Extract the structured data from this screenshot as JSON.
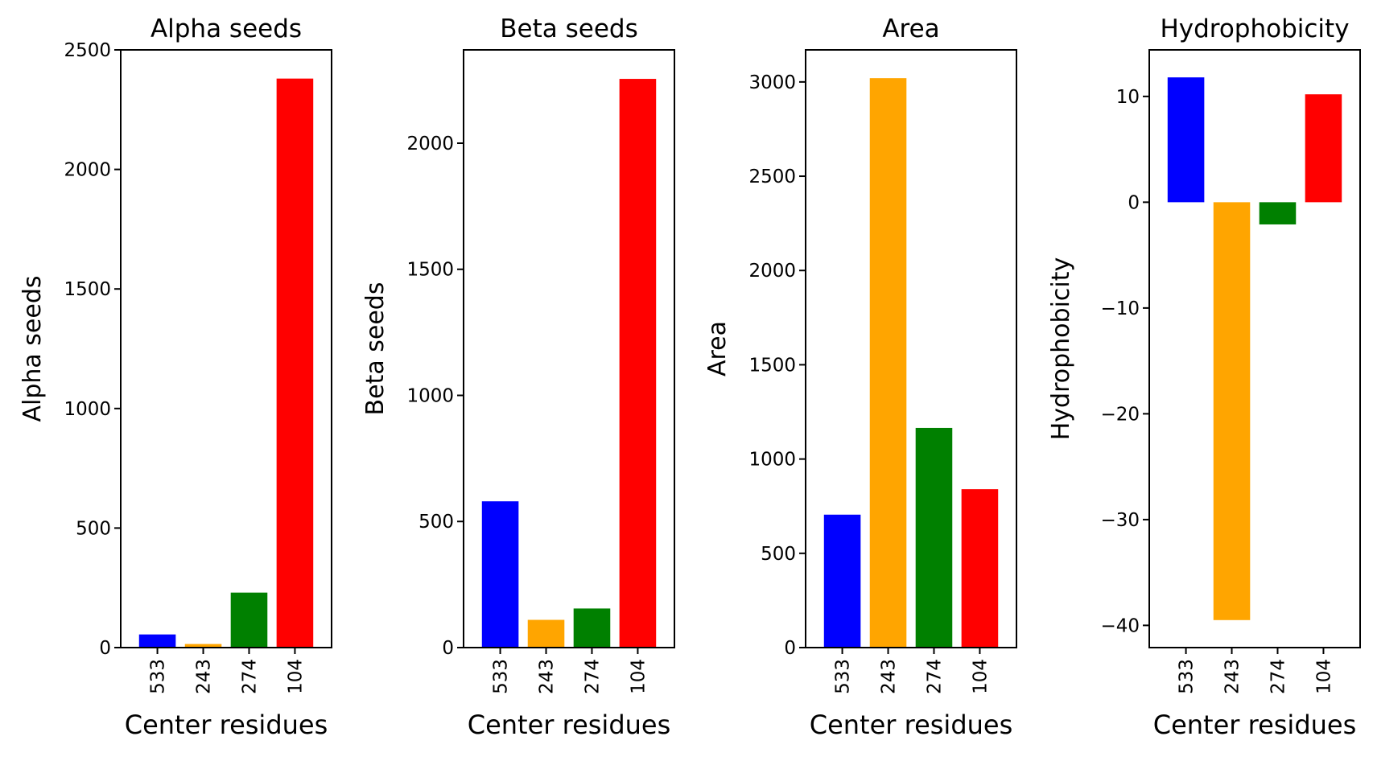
{
  "chart_data": [
    {
      "type": "bar",
      "title": "Alpha seeds",
      "xlabel": "Center residues",
      "ylabel": "Alpha seeds",
      "categories": [
        "533",
        "243",
        "274",
        "104"
      ],
      "values": [
        55,
        15,
        230,
        2380
      ],
      "colors": [
        "#0000ff",
        "#ffa500",
        "#008000",
        "#ff0000"
      ],
      "ylim": [
        0,
        2500
      ],
      "yticks": [
        0,
        500,
        1000,
        1500,
        2000,
        2500
      ],
      "grid": false
    },
    {
      "type": "bar",
      "title": "Beta seeds",
      "xlabel": "Center residues",
      "ylabel": "Beta seeds",
      "categories": [
        "533",
        "243",
        "274",
        "104"
      ],
      "values": [
        580,
        110,
        155,
        2255
      ],
      "colors": [
        "#0000ff",
        "#ffa500",
        "#008000",
        "#ff0000"
      ],
      "ylim": [
        0,
        2370
      ],
      "yticks": [
        0,
        500,
        1000,
        1500,
        2000
      ],
      "grid": false
    },
    {
      "type": "bar",
      "title": "Area",
      "xlabel": "Center residues",
      "ylabel": "Area",
      "categories": [
        "533",
        "243",
        "274",
        "104"
      ],
      "values": [
        705,
        3020,
        1165,
        840
      ],
      "colors": [
        "#0000ff",
        "#ffa500",
        "#008000",
        "#ff0000"
      ],
      "ylim": [
        0,
        3170
      ],
      "yticks": [
        0,
        500,
        1000,
        1500,
        2000,
        2500,
        3000
      ],
      "grid": false
    },
    {
      "type": "bar",
      "title": "Hydrophobicity",
      "xlabel": "Center residues",
      "ylabel": "Hydrophobicity",
      "categories": [
        "533",
        "243",
        "274",
        "104"
      ],
      "values": [
        11.8,
        -39.5,
        -2.1,
        10.2
      ],
      "colors": [
        "#0000ff",
        "#ffa500",
        "#008000",
        "#ff0000"
      ],
      "ylim": [
        -42.1,
        14.4
      ],
      "yticks": [
        -40,
        -30,
        -20,
        -10,
        0,
        10
      ],
      "grid": false
    }
  ]
}
